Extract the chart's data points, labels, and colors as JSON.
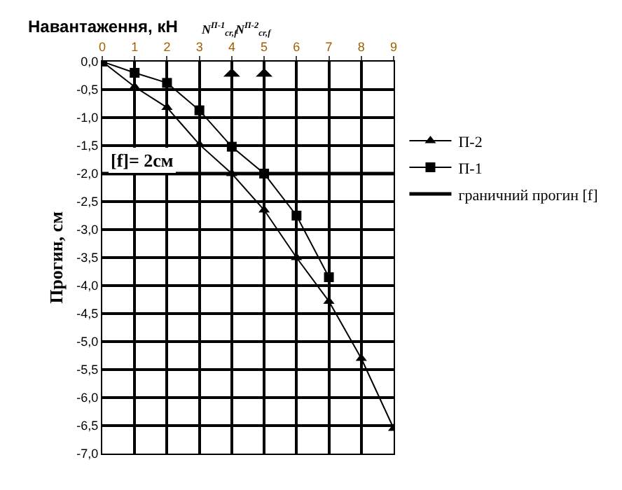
{
  "chart_data": {
    "type": "line",
    "xlabel": "Навантаження, кН",
    "ylabel": "Прогин, см",
    "xlim": [
      0,
      9
    ],
    "xticks": [
      0,
      1,
      2,
      3,
      4,
      5,
      6,
      7,
      8,
      9
    ],
    "ylim": [
      -7,
      0
    ],
    "yticks": [
      {
        "value": 0,
        "label": "0,0"
      },
      {
        "value": -0.5,
        "label": "-0,5"
      },
      {
        "value": -1,
        "label": "-1,0"
      },
      {
        "value": -1.5,
        "label": "-1,5"
      },
      {
        "value": -2,
        "label": "-2,0"
      },
      {
        "value": -2.5,
        "label": "-2,5"
      },
      {
        "value": -3,
        "label": "-3,0"
      },
      {
        "value": -3.5,
        "label": "-3,5"
      },
      {
        "value": -4,
        "label": "-4,0"
      },
      {
        "value": -4.5,
        "label": "-4,5"
      },
      {
        "value": -5,
        "label": "-5,0"
      },
      {
        "value": -5.5,
        "label": "-5,5"
      },
      {
        "value": -6,
        "label": "-6,0"
      },
      {
        "value": -6.5,
        "label": "-6,5"
      },
      {
        "value": -7,
        "label": "-7,0"
      }
    ],
    "grid": true,
    "legend": "right",
    "series": [
      {
        "name": "П-1",
        "color": "#000000",
        "marker": "square",
        "x": [
          0,
          1,
          2,
          3,
          4,
          5,
          6,
          7
        ],
        "values": [
          0,
          -0.2,
          -0.38,
          -0.87,
          -1.52,
          -2.0,
          -2.75,
          -3.85
        ]
      },
      {
        "name": "П-2",
        "color": "#000000",
        "marker": "triangle",
        "x": [
          0,
          1,
          2,
          3,
          4,
          5,
          6,
          7,
          8,
          9
        ],
        "values": [
          0,
          -0.45,
          -0.82,
          -1.48,
          -2.0,
          -2.65,
          -3.5,
          -4.28,
          -5.3,
          -6.55
        ]
      }
    ],
    "ref_lines": [
      {
        "axis": "y",
        "value": -2,
        "label": "граничний прогин [f]",
        "color": "#000000"
      },
      {
        "axis": "x",
        "value": 4,
        "label": "N$^{П-1}$$_{cr,f}$",
        "color": "#000000"
      },
      {
        "axis": "x",
        "value": 5,
        "label": "N$^{П-2}$$_{cr,f}$",
        "color": "#000000"
      }
    ],
    "annotations": [
      "[f]= 2см"
    ]
  }
}
